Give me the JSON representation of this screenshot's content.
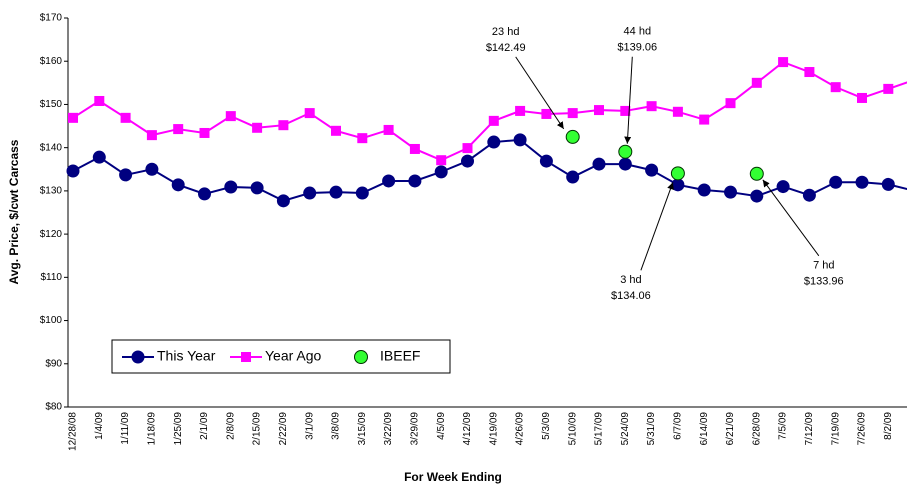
{
  "chart_data": {
    "type": "line",
    "y_label": "Avg. Price, $/cwt Carcass",
    "x_label": "For Week Ending",
    "ylim": [
      80,
      170
    ],
    "yticks": [
      {
        "value": 80,
        "label": "$80"
      },
      {
        "value": 90,
        "label": "$90"
      },
      {
        "value": 100,
        "label": "$100"
      },
      {
        "value": 110,
        "label": "$110"
      },
      {
        "value": 120,
        "label": "$120"
      },
      {
        "value": 130,
        "label": "$130"
      },
      {
        "value": 140,
        "label": "$140"
      },
      {
        "value": 150,
        "label": "$150"
      },
      {
        "value": 160,
        "label": "$160"
      },
      {
        "value": 170,
        "label": "$170"
      }
    ],
    "categories": [
      "12/28/08",
      "1/4/09",
      "1/11/09",
      "1/18/09",
      "1/25/09",
      "2/1/09",
      "2/8/09",
      "2/15/09",
      "2/22/09",
      "3/1/09",
      "3/8/09",
      "3/15/09",
      "3/22/09",
      "3/29/09",
      "4/5/09",
      "4/12/09",
      "4/19/09",
      "4/26/09",
      "5/3/09",
      "5/10/09",
      "5/17/09",
      "5/24/09",
      "5/31/09",
      "6/7/09",
      "6/14/09",
      "6/21/09",
      "6/28/09",
      "7/5/09",
      "7/12/09",
      "7/19/09",
      "7/26/09",
      "8/2/09",
      null
    ],
    "series": [
      {
        "name": "This Year",
        "color": "#000080",
        "marker": "circle",
        "values": [
          134.6,
          137.8,
          133.7,
          135,
          131.4,
          129.3,
          130.9,
          130.7,
          127.7,
          129.5,
          129.7,
          129.5,
          132.3,
          132.3,
          134.4,
          136.9,
          141.3,
          141.8,
          136.9,
          133.2,
          136.2,
          136.2,
          134.8,
          131.4,
          130.2,
          129.7,
          128.8,
          131,
          129,
          132,
          132,
          131.5,
          130
        ]
      },
      {
        "name": "Year Ago",
        "color": "#ff00ff",
        "marker": "square",
        "values": [
          146.9,
          150.8,
          146.9,
          142.9,
          144.3,
          143.4,
          147.3,
          144.6,
          145.2,
          148,
          143.9,
          142.2,
          144.1,
          139.7,
          137.1,
          139.9,
          146.2,
          148.5,
          147.8,
          148,
          148.7,
          148.5,
          149.6,
          148.3,
          146.5,
          150.3,
          155,
          159.8,
          157.5,
          154,
          151.5,
          153.6,
          155.7
        ]
      },
      {
        "name": "IBEEF",
        "color": "#33ff33",
        "marker": "dot",
        "values": [
          null,
          null,
          null,
          null,
          null,
          null,
          null,
          null,
          null,
          null,
          null,
          null,
          null,
          null,
          null,
          null,
          null,
          null,
          null,
          142.49,
          null,
          139.06,
          null,
          134.06,
          null,
          null,
          133.96,
          null,
          null,
          null,
          null,
          null,
          null
        ],
        "head_labels": [
          null,
          null,
          null,
          null,
          null,
          null,
          null,
          null,
          null,
          null,
          null,
          null,
          null,
          null,
          null,
          null,
          null,
          null,
          null,
          "23 hd",
          null,
          "44 hd",
          null,
          "3 hd",
          null,
          null,
          "7 hd",
          null,
          null,
          null,
          null,
          null,
          null
        ],
        "value_labels": [
          null,
          null,
          null,
          null,
          null,
          null,
          null,
          null,
          null,
          null,
          null,
          null,
          null,
          null,
          null,
          null,
          null,
          null,
          null,
          "$142.49",
          null,
          "$139.06",
          null,
          "$134.06",
          null,
          null,
          "$133.96",
          null,
          null,
          null,
          null,
          null,
          null
        ]
      }
    ]
  }
}
